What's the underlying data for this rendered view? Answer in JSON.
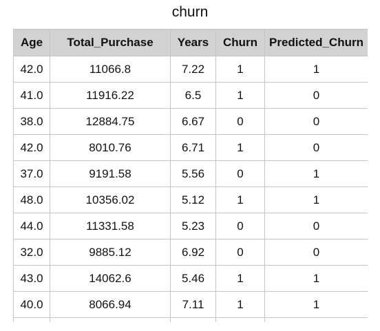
{
  "title": "churn",
  "columns": [
    "Age",
    "Total_Purchase",
    "Years",
    "Churn",
    "Predicted_Churn"
  ],
  "rows": [
    [
      "42.0",
      "11066.8",
      "7.22",
      "1",
      "1"
    ],
    [
      "41.0",
      "11916.22",
      "6.5",
      "1",
      "0"
    ],
    [
      "38.0",
      "12884.75",
      "6.67",
      "0",
      "0"
    ],
    [
      "42.0",
      "8010.76",
      "6.71",
      "1",
      "0"
    ],
    [
      "37.0",
      "9191.58",
      "5.56",
      "0",
      "1"
    ],
    [
      "48.0",
      "10356.02",
      "5.12",
      "1",
      "1"
    ],
    [
      "44.0",
      "11331.58",
      "5.23",
      "0",
      "0"
    ],
    [
      "32.0",
      "9885.12",
      "6.92",
      "0",
      "0"
    ],
    [
      "43.0",
      "14062.6",
      "5.46",
      "1",
      "1"
    ],
    [
      "40.0",
      "8066.94",
      "7.11",
      "1",
      "1"
    ]
  ]
}
